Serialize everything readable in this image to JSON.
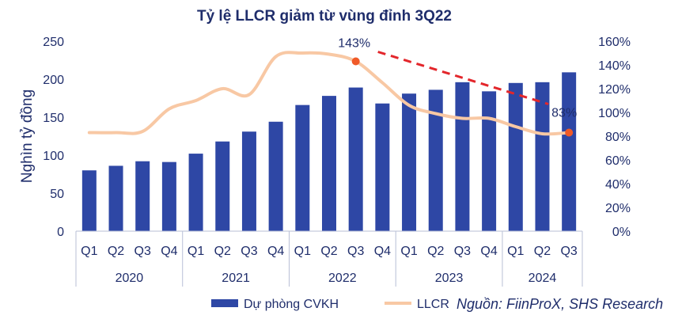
{
  "chart_data": {
    "type": "bar",
    "title": "Tỷ lệ LLCR giảm từ vùng đỉnh 3Q22",
    "ylabel": "Nghìn tỷ đồng",
    "ylim": [
      0,
      250
    ],
    "yticks": [
      "0",
      "50",
      "100",
      "150",
      "200",
      "250"
    ],
    "y2lim": [
      0,
      160
    ],
    "y2ticks": [
      "0%",
      "20%",
      "40%",
      "60%",
      "80%",
      "100%",
      "120%",
      "140%",
      "160%"
    ],
    "categories": [
      "Q1",
      "Q2",
      "Q3",
      "Q4",
      "Q1",
      "Q2",
      "Q3",
      "Q4",
      "Q1",
      "Q2",
      "Q3",
      "Q4",
      "Q1",
      "Q2",
      "Q3",
      "Q4",
      "Q1",
      "Q2",
      "Q3"
    ],
    "years": [
      {
        "label": "2020",
        "count": 4
      },
      {
        "label": "2021",
        "count": 4
      },
      {
        "label": "2022",
        "count": 4
      },
      {
        "label": "2023",
        "count": 4
      },
      {
        "label": "2024",
        "count": 3
      }
    ],
    "series": [
      {
        "name": "Dự phòng CVKH",
        "type": "bar",
        "axis": "left",
        "color": "#2e47a5",
        "values": [
          80,
          86,
          92,
          91,
          102,
          118,
          131,
          144,
          166,
          178,
          189,
          168,
          181,
          186,
          196,
          184,
          195,
          196,
          209
        ]
      },
      {
        "name": "LLCR",
        "type": "line",
        "axis": "right",
        "color": "#f8c8a4",
        "values": [
          83,
          83,
          84,
          103,
          110,
          120,
          115,
          147,
          150,
          149,
          143,
          125,
          106,
          99,
          95,
          95,
          88,
          82,
          83
        ]
      }
    ],
    "annotations": [
      {
        "text": "143%",
        "index": 10
      },
      {
        "text": "83%",
        "index": 18
      }
    ],
    "trend": {
      "from_index": 10,
      "to_index": 18,
      "color": "#e3262b"
    },
    "marker_color": "#f05a28",
    "legend": "bottom",
    "grid": false
  },
  "source": "Nguồn: FiinProX, SHS Research"
}
